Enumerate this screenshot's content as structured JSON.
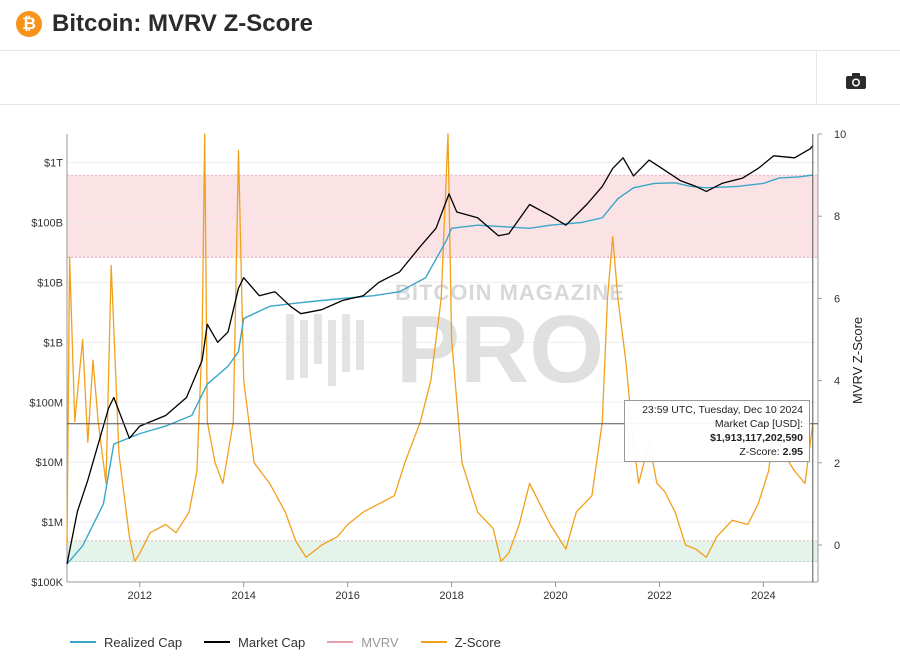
{
  "header": {
    "logo_symbol": "₿",
    "title": "Bitcoin: MVRV Z-Score"
  },
  "toolbar": {
    "camera_icon": "camera-icon"
  },
  "colors": {
    "realized": "#3aa6c9",
    "market": "#000000",
    "mvrv": "#e8a0aa",
    "zscore": "#f2a01b",
    "red_band": "#fbe3e5",
    "green_band": "#e4f4ea"
  },
  "chart_data": {
    "type": "line",
    "title": "Bitcoin: MVRV Z-Score",
    "x_ticks": [
      "2012",
      "2014",
      "2016",
      "2018",
      "2020",
      "2022",
      "2024"
    ],
    "left_axis": {
      "scale": "log",
      "ticks": [
        "$1T",
        "$100B",
        "$10B",
        "$1B",
        "$100M",
        "$10M",
        "$1M",
        "$100K"
      ],
      "range": [
        100000,
        3000000000000
      ]
    },
    "right_axis": {
      "title": "MVRV Z-Score",
      "ticks": [
        "10",
        "8",
        "6",
        "4",
        "2",
        "0"
      ],
      "range": [
        -0.9,
        10
      ]
    },
    "bands": [
      {
        "name": "overvalued",
        "from": 7,
        "to": 9
      },
      {
        "name": "undervalued",
        "from": -0.4,
        "to": 0.1
      }
    ],
    "series": [
      {
        "name": "Realized Cap",
        "axis": "left",
        "points": [
          [
            2010.6,
            200000
          ],
          [
            2010.9,
            400000
          ],
          [
            2011.3,
            2000000
          ],
          [
            2011.5,
            20000000
          ],
          [
            2012.0,
            30000000
          ],
          [
            2012.5,
            40000000
          ],
          [
            2013.0,
            60000000
          ],
          [
            2013.3,
            200000000
          ],
          [
            2013.7,
            400000000
          ],
          [
            2013.9,
            700000000
          ],
          [
            2014.0,
            2500000000
          ],
          [
            2014.5,
            4000000000
          ],
          [
            2015.0,
            4500000000
          ],
          [
            2015.5,
            5000000000
          ],
          [
            2016.0,
            5500000000
          ],
          [
            2016.5,
            6000000000
          ],
          [
            2017.0,
            7000000000
          ],
          [
            2017.5,
            12000000000
          ],
          [
            2017.9,
            50000000000
          ],
          [
            2018.0,
            80000000000
          ],
          [
            2018.5,
            90000000000
          ],
          [
            2019.0,
            85000000000
          ],
          [
            2019.5,
            80000000000
          ],
          [
            2019.9,
            90000000000
          ],
          [
            2020.5,
            100000000000
          ],
          [
            2020.9,
            120000000000
          ],
          [
            2021.2,
            250000000000
          ],
          [
            2021.5,
            380000000000
          ],
          [
            2021.9,
            450000000000
          ],
          [
            2022.3,
            460000000000
          ],
          [
            2022.6,
            400000000000
          ],
          [
            2022.9,
            380000000000
          ],
          [
            2023.5,
            400000000000
          ],
          [
            2024.0,
            450000000000
          ],
          [
            2024.3,
            550000000000
          ],
          [
            2024.7,
            580000000000
          ],
          [
            2024.95,
            620000000000
          ]
        ]
      },
      {
        "name": "Market Cap",
        "axis": "left",
        "points": [
          [
            2010.6,
            200000
          ],
          [
            2010.8,
            1500000
          ],
          [
            2011.0,
            5000000
          ],
          [
            2011.4,
            80000000
          ],
          [
            2011.5,
            120000000
          ],
          [
            2011.8,
            25000000
          ],
          [
            2012.0,
            40000000
          ],
          [
            2012.5,
            60000000
          ],
          [
            2012.9,
            120000000
          ],
          [
            2013.2,
            500000000
          ],
          [
            2013.3,
            2000000000
          ],
          [
            2013.5,
            1000000000
          ],
          [
            2013.7,
            1500000000
          ],
          [
            2013.9,
            8000000000
          ],
          [
            2014.0,
            12000000000
          ],
          [
            2014.3,
            6000000000
          ],
          [
            2014.6,
            7000000000
          ],
          [
            2014.9,
            4000000000
          ],
          [
            2015.1,
            3000000000
          ],
          [
            2015.5,
            3500000000
          ],
          [
            2015.9,
            5000000000
          ],
          [
            2016.3,
            6000000000
          ],
          [
            2016.6,
            10000000000
          ],
          [
            2017.0,
            15000000000
          ],
          [
            2017.4,
            40000000000
          ],
          [
            2017.7,
            80000000000
          ],
          [
            2017.95,
            300000000000
          ],
          [
            2018.1,
            150000000000
          ],
          [
            2018.5,
            120000000000
          ],
          [
            2018.9,
            60000000000
          ],
          [
            2019.1,
            65000000000
          ],
          [
            2019.5,
            200000000000
          ],
          [
            2019.9,
            130000000000
          ],
          [
            2020.2,
            90000000000
          ],
          [
            2020.6,
            200000000000
          ],
          [
            2020.9,
            400000000000
          ],
          [
            2021.1,
            800000000000
          ],
          [
            2021.3,
            1200000000000
          ],
          [
            2021.5,
            600000000000
          ],
          [
            2021.8,
            1100000000000
          ],
          [
            2022.0,
            850000000000
          ],
          [
            2022.4,
            500000000000
          ],
          [
            2022.7,
            400000000000
          ],
          [
            2022.9,
            330000000000
          ],
          [
            2023.2,
            450000000000
          ],
          [
            2023.6,
            550000000000
          ],
          [
            2023.9,
            800000000000
          ],
          [
            2024.2,
            1300000000000
          ],
          [
            2024.6,
            1200000000000
          ],
          [
            2024.9,
            1700000000000
          ],
          [
            2024.95,
            1913117202590
          ]
        ]
      },
      {
        "name": "MVRV",
        "axis": "hidden",
        "points": []
      },
      {
        "name": "Z-Score",
        "axis": "right",
        "points": [
          [
            2010.6,
            0.0
          ],
          [
            2010.65,
            7.0
          ],
          [
            2010.75,
            3.0
          ],
          [
            2010.9,
            5.0
          ],
          [
            2011.0,
            2.5
          ],
          [
            2011.1,
            4.5
          ],
          [
            2011.2,
            3.0
          ],
          [
            2011.35,
            1.5
          ],
          [
            2011.45,
            6.8
          ],
          [
            2011.6,
            2.2
          ],
          [
            2011.8,
            0.2
          ],
          [
            2011.9,
            -0.4
          ],
          [
            2012.0,
            -0.2
          ],
          [
            2012.2,
            0.3
          ],
          [
            2012.5,
            0.5
          ],
          [
            2012.7,
            0.3
          ],
          [
            2012.95,
            0.8
          ],
          [
            2013.1,
            1.8
          ],
          [
            2013.2,
            5.0
          ],
          [
            2013.25,
            10.0
          ],
          [
            2013.3,
            3.0
          ],
          [
            2013.45,
            2.0
          ],
          [
            2013.6,
            1.5
          ],
          [
            2013.8,
            3.0
          ],
          [
            2013.9,
            9.6
          ],
          [
            2014.0,
            4.0
          ],
          [
            2014.2,
            2.0
          ],
          [
            2014.5,
            1.5
          ],
          [
            2014.8,
            0.8
          ],
          [
            2015.0,
            0.1
          ],
          [
            2015.2,
            -0.3
          ],
          [
            2015.5,
            0.0
          ],
          [
            2015.8,
            0.2
          ],
          [
            2016.0,
            0.5
          ],
          [
            2016.3,
            0.8
          ],
          [
            2016.6,
            1.0
          ],
          [
            2016.9,
            1.2
          ],
          [
            2017.1,
            2.0
          ],
          [
            2017.4,
            3.0
          ],
          [
            2017.6,
            4.0
          ],
          [
            2017.8,
            6.0
          ],
          [
            2017.93,
            10.0
          ],
          [
            2018.0,
            5.0
          ],
          [
            2018.2,
            2.0
          ],
          [
            2018.5,
            0.8
          ],
          [
            2018.8,
            0.4
          ],
          [
            2018.95,
            -0.4
          ],
          [
            2019.1,
            -0.2
          ],
          [
            2019.3,
            0.5
          ],
          [
            2019.5,
            1.5
          ],
          [
            2019.7,
            1.0
          ],
          [
            2019.9,
            0.5
          ],
          [
            2020.2,
            -0.1
          ],
          [
            2020.4,
            0.8
          ],
          [
            2020.7,
            1.2
          ],
          [
            2020.9,
            3.0
          ],
          [
            2021.0,
            6.0
          ],
          [
            2021.1,
            7.5
          ],
          [
            2021.2,
            6.0
          ],
          [
            2021.35,
            4.5
          ],
          [
            2021.5,
            2.5
          ],
          [
            2021.6,
            1.5
          ],
          [
            2021.8,
            2.5
          ],
          [
            2021.95,
            1.5
          ],
          [
            2022.1,
            1.3
          ],
          [
            2022.3,
            0.8
          ],
          [
            2022.5,
            0.0
          ],
          [
            2022.7,
            -0.1
          ],
          [
            2022.9,
            -0.3
          ],
          [
            2023.1,
            0.2
          ],
          [
            2023.4,
            0.6
          ],
          [
            2023.7,
            0.5
          ],
          [
            2023.9,
            1.0
          ],
          [
            2024.1,
            1.8
          ],
          [
            2024.2,
            2.8
          ],
          [
            2024.4,
            2.2
          ],
          [
            2024.6,
            1.8
          ],
          [
            2024.8,
            1.5
          ],
          [
            2024.95,
            2.95
          ]
        ]
      }
    ],
    "tooltip": {
      "date": "23:59 UTC, Tuesday, Dec 10 2024",
      "market_cap_label": "Market Cap [USD]:",
      "market_cap_value": "$1,913,117,202,590",
      "zscore_label": "Z-Score:",
      "zscore_value": "2.95"
    },
    "watermark": {
      "top": "BITCOIN MAGAZINE",
      "bottom": "PRO"
    }
  },
  "legend": {
    "items": [
      {
        "label": "Realized Cap",
        "color_key": "realized"
      },
      {
        "label": "Market Cap",
        "color_key": "market"
      },
      {
        "label": "MVRV",
        "color_key": "mvrv"
      },
      {
        "label": "Z-Score",
        "color_key": "zscore"
      }
    ]
  }
}
